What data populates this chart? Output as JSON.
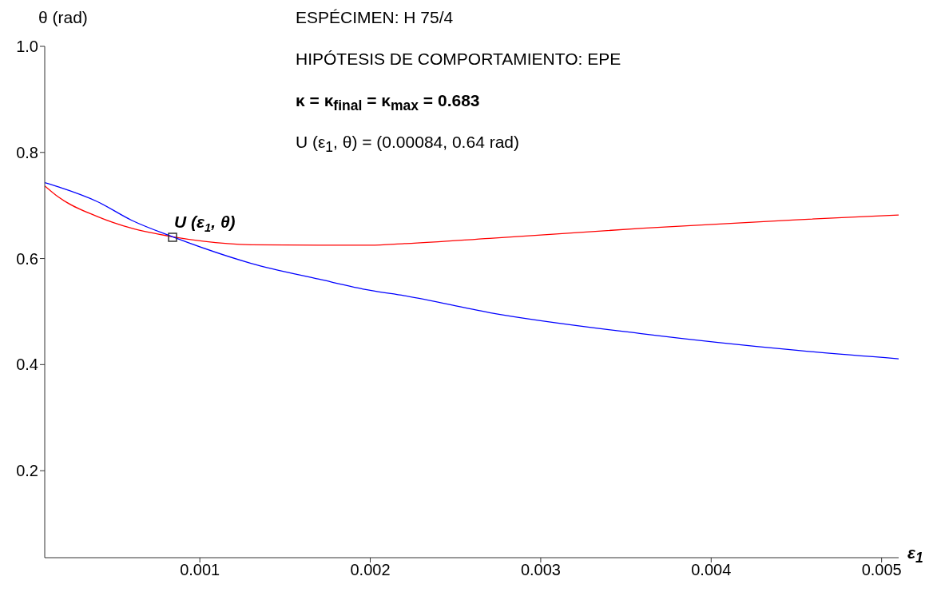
{
  "chart_data": {
    "type": "line",
    "xlabel": "ε$_{1}$",
    "ylabel": "θ (rad)",
    "xlim": [
      9e-05,
      0.0051
    ],
    "ylim": [
      0.036,
      1.0
    ],
    "xticks": [
      0.001,
      0.002,
      0.003,
      0.004,
      0.005
    ],
    "yticks": [
      0.2,
      0.4,
      0.6,
      0.8,
      {
        "value": 1.0,
        "label": "1.0"
      }
    ],
    "marker": "none",
    "line_style": "solid",
    "series": [
      {
        "color": "#ff0000",
        "x": [
          9e-05,
          0.00017,
          0.0004,
          0.0006,
          0.00084,
          0.0013,
          0.0017,
          0.002,
          0.0022,
          0.0027,
          0.0036,
          0.0045,
          0.0051
        ],
        "values": [
          0.737,
          0.716,
          0.679,
          0.657,
          0.641,
          0.626,
          0.625,
          0.625,
          0.628,
          0.638,
          0.657,
          0.673,
          0.682
        ]
      },
      {
        "color": "#0000ff",
        "x": [
          9e-05,
          0.00017,
          0.0004,
          0.0006,
          0.00084,
          0.0013,
          0.0017,
          0.002,
          0.0022,
          0.0027,
          0.0036,
          0.0045,
          0.0051
        ],
        "values": [
          0.743,
          0.735,
          0.707,
          0.672,
          0.641,
          0.591,
          0.561,
          0.54,
          0.53,
          0.498,
          0.458,
          0.427,
          0.411
        ]
      },
      {
        "type": "scatter",
        "marker": "square",
        "color": "#333333",
        "x": [
          0.00084
        ],
        "values": [
          0.64
        ]
      }
    ],
    "annotations": [
      "ESPÉCIMEN: H 75/4",
      "HIPÓTESIS DE COMPORTAMIENTO: EPE",
      "κ = κ$_{final}$ = κ$_{max}$ = 0.683",
      "U (ε$_{1}$, θ) = (0.00084, 0.64 rad)",
      {
        "text": "U (ε$_{1}$, θ)",
        "x": 0.00084,
        "y": 0.64
      }
    ]
  }
}
